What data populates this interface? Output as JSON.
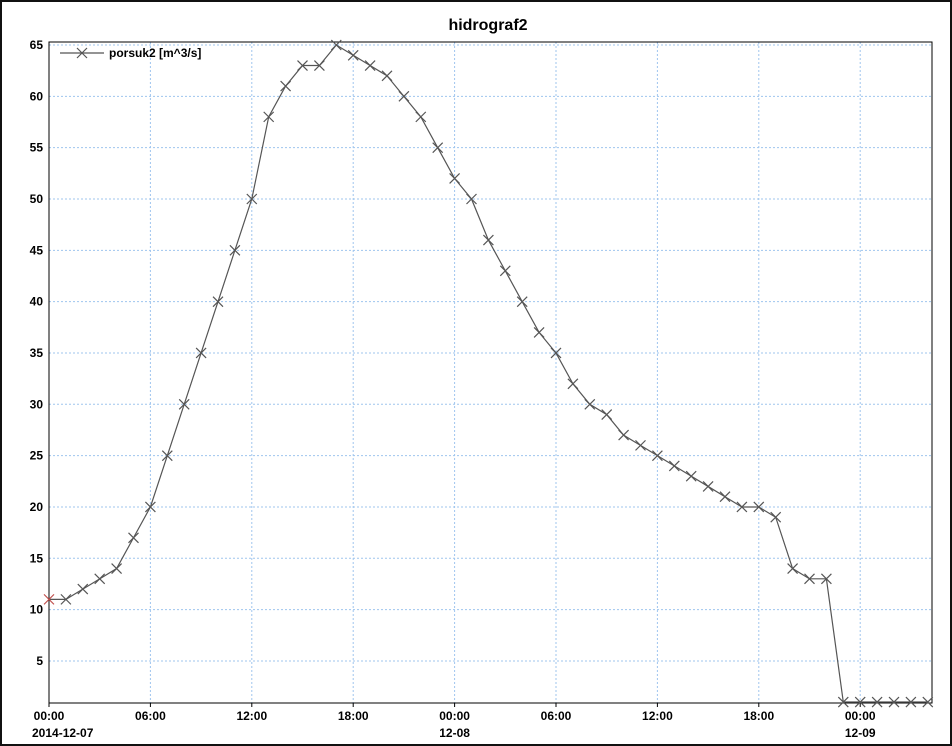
{
  "chart_data": {
    "type": "line",
    "title": "hidrograf2",
    "xlabel": "",
    "ylabel": "",
    "grid": true,
    "legend_position": "top-left",
    "ylim": [
      1,
      65
    ],
    "y_ticks": [
      5,
      10,
      15,
      20,
      25,
      30,
      35,
      40,
      45,
      50,
      55,
      60,
      65
    ],
    "x_range": [
      "2014-12-07 00:00",
      "2014-12-09 04:00"
    ],
    "x_ticks": [
      {
        "time": "00:00",
        "date": "2014-12-07",
        "hour": 0
      },
      {
        "time": "06:00",
        "date": "",
        "hour": 6
      },
      {
        "time": "12:00",
        "date": "",
        "hour": 12
      },
      {
        "time": "18:00",
        "date": "",
        "hour": 18
      },
      {
        "time": "00:00",
        "date": "12-08",
        "hour": 24
      },
      {
        "time": "06:00",
        "date": "",
        "hour": 30
      },
      {
        "time": "12:00",
        "date": "",
        "hour": 36
      },
      {
        "time": "18:00",
        "date": "",
        "hour": 42
      },
      {
        "time": "00:00",
        "date": "12-09",
        "hour": 48
      }
    ],
    "series": [
      {
        "name": "porsuk2 [m^3/s]",
        "color": "#555555",
        "first_marker_color": "#c0504d",
        "x": [
          "2014-12-07 00:00",
          "2014-12-07 01:00",
          "2014-12-07 02:00",
          "2014-12-07 03:00",
          "2014-12-07 04:00",
          "2014-12-07 05:00",
          "2014-12-07 06:00",
          "2014-12-07 07:00",
          "2014-12-07 08:00",
          "2014-12-07 09:00",
          "2014-12-07 10:00",
          "2014-12-07 11:00",
          "2014-12-07 12:00",
          "2014-12-07 13:00",
          "2014-12-07 14:00",
          "2014-12-07 15:00",
          "2014-12-07 16:00",
          "2014-12-07 17:00",
          "2014-12-07 18:00",
          "2014-12-07 19:00",
          "2014-12-07 20:00",
          "2014-12-07 21:00",
          "2014-12-07 22:00",
          "2014-12-07 23:00",
          "2014-12-08 00:00",
          "2014-12-08 01:00",
          "2014-12-08 02:00",
          "2014-12-08 03:00",
          "2014-12-08 04:00",
          "2014-12-08 05:00",
          "2014-12-08 06:00",
          "2014-12-08 07:00",
          "2014-12-08 08:00",
          "2014-12-08 09:00",
          "2014-12-08 10:00",
          "2014-12-08 11:00",
          "2014-12-08 12:00",
          "2014-12-08 13:00",
          "2014-12-08 14:00",
          "2014-12-08 15:00",
          "2014-12-08 16:00",
          "2014-12-08 17:00",
          "2014-12-08 18:00",
          "2014-12-08 19:00",
          "2014-12-08 20:00",
          "2014-12-08 21:00",
          "2014-12-08 22:00",
          "2014-12-08 23:00",
          "2014-12-09 00:00",
          "2014-12-09 01:00",
          "2014-12-09 02:00",
          "2014-12-09 03:00",
          "2014-12-09 04:00"
        ],
        "values": [
          11,
          11,
          12,
          13,
          14,
          17,
          20,
          25,
          30,
          35,
          40,
          45,
          50,
          58,
          61,
          63,
          63,
          65,
          64,
          63,
          62,
          60,
          58,
          55,
          52,
          50,
          46,
          43,
          40,
          37,
          35,
          32,
          30,
          29,
          27,
          26,
          25,
          24,
          23,
          22,
          21,
          20,
          20,
          19,
          14,
          13,
          13,
          1,
          1,
          1,
          1,
          1,
          1
        ]
      }
    ]
  }
}
